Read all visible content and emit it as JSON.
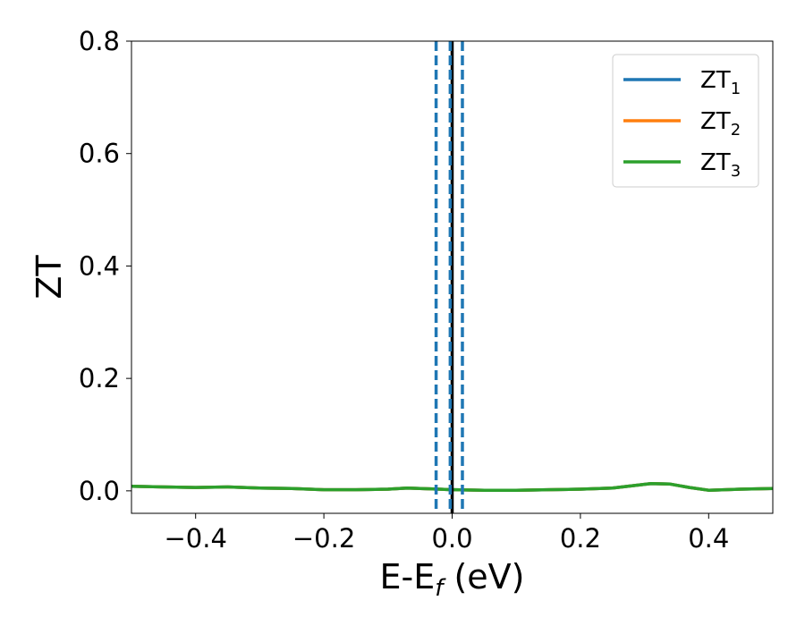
{
  "chart_data": {
    "type": "line",
    "title": "",
    "xlabel": {
      "base": "E-E",
      "sub": "f",
      "rest": " (eV)"
    },
    "ylabel": "ZT",
    "xlim": [
      -0.5,
      0.5
    ],
    "ylim": [
      -0.04,
      0.8
    ],
    "xticks": [
      -0.4,
      -0.2,
      0.0,
      0.2,
      0.4
    ],
    "xtick_labels": [
      "−0.4",
      "−0.2",
      "0.0",
      "0.2",
      "0.4"
    ],
    "yticks": [
      0.0,
      0.2,
      0.4,
      0.6,
      0.8
    ],
    "ytick_labels": [
      "0.0",
      "0.2",
      "0.4",
      "0.6",
      "0.8"
    ],
    "grid": false,
    "legend_position": "top-right",
    "x": [
      -0.5,
      -0.45,
      -0.4,
      -0.35,
      -0.3,
      -0.25,
      -0.2,
      -0.15,
      -0.1,
      -0.07,
      -0.05,
      -0.02,
      0.0,
      0.05,
      0.1,
      0.15,
      0.2,
      0.25,
      0.28,
      0.31,
      0.34,
      0.37,
      0.4,
      0.45,
      0.5
    ],
    "series": [
      {
        "name": "ZT",
        "sub": "1",
        "color": "#1f77b4",
        "values": [
          0.008,
          0.007,
          0.006,
          0.007,
          0.005,
          0.004,
          0.002,
          0.002,
          0.003,
          0.005,
          0.004,
          0.003,
          0.002,
          0.001,
          0.001,
          0.002,
          0.003,
          0.005,
          0.009,
          0.013,
          0.012,
          0.006,
          0.001,
          0.003,
          0.004
        ]
      },
      {
        "name": "ZT",
        "sub": "2",
        "color": "#ff7f0e",
        "values": [
          0.008,
          0.007,
          0.006,
          0.007,
          0.005,
          0.004,
          0.002,
          0.002,
          0.003,
          0.005,
          0.004,
          0.003,
          0.002,
          0.001,
          0.001,
          0.002,
          0.003,
          0.005,
          0.009,
          0.013,
          0.012,
          0.006,
          0.001,
          0.003,
          0.004
        ]
      },
      {
        "name": "ZT",
        "sub": "3",
        "color": "#2ca02c",
        "values": [
          0.008,
          0.007,
          0.006,
          0.007,
          0.005,
          0.004,
          0.002,
          0.002,
          0.003,
          0.005,
          0.004,
          0.003,
          0.002,
          0.001,
          0.001,
          0.002,
          0.003,
          0.005,
          0.009,
          0.013,
          0.012,
          0.006,
          0.001,
          0.003,
          0.004
        ]
      }
    ],
    "vlines": [
      {
        "x": 0.0,
        "style": "solid",
        "color": "#000000"
      },
      {
        "x": -0.025,
        "style": "dashed",
        "color": "#1f77b4"
      },
      {
        "x": -0.003,
        "style": "dashed",
        "color": "#1f77b4"
      },
      {
        "x": 0.016,
        "style": "dashed",
        "color": "#1f77b4"
      }
    ]
  }
}
